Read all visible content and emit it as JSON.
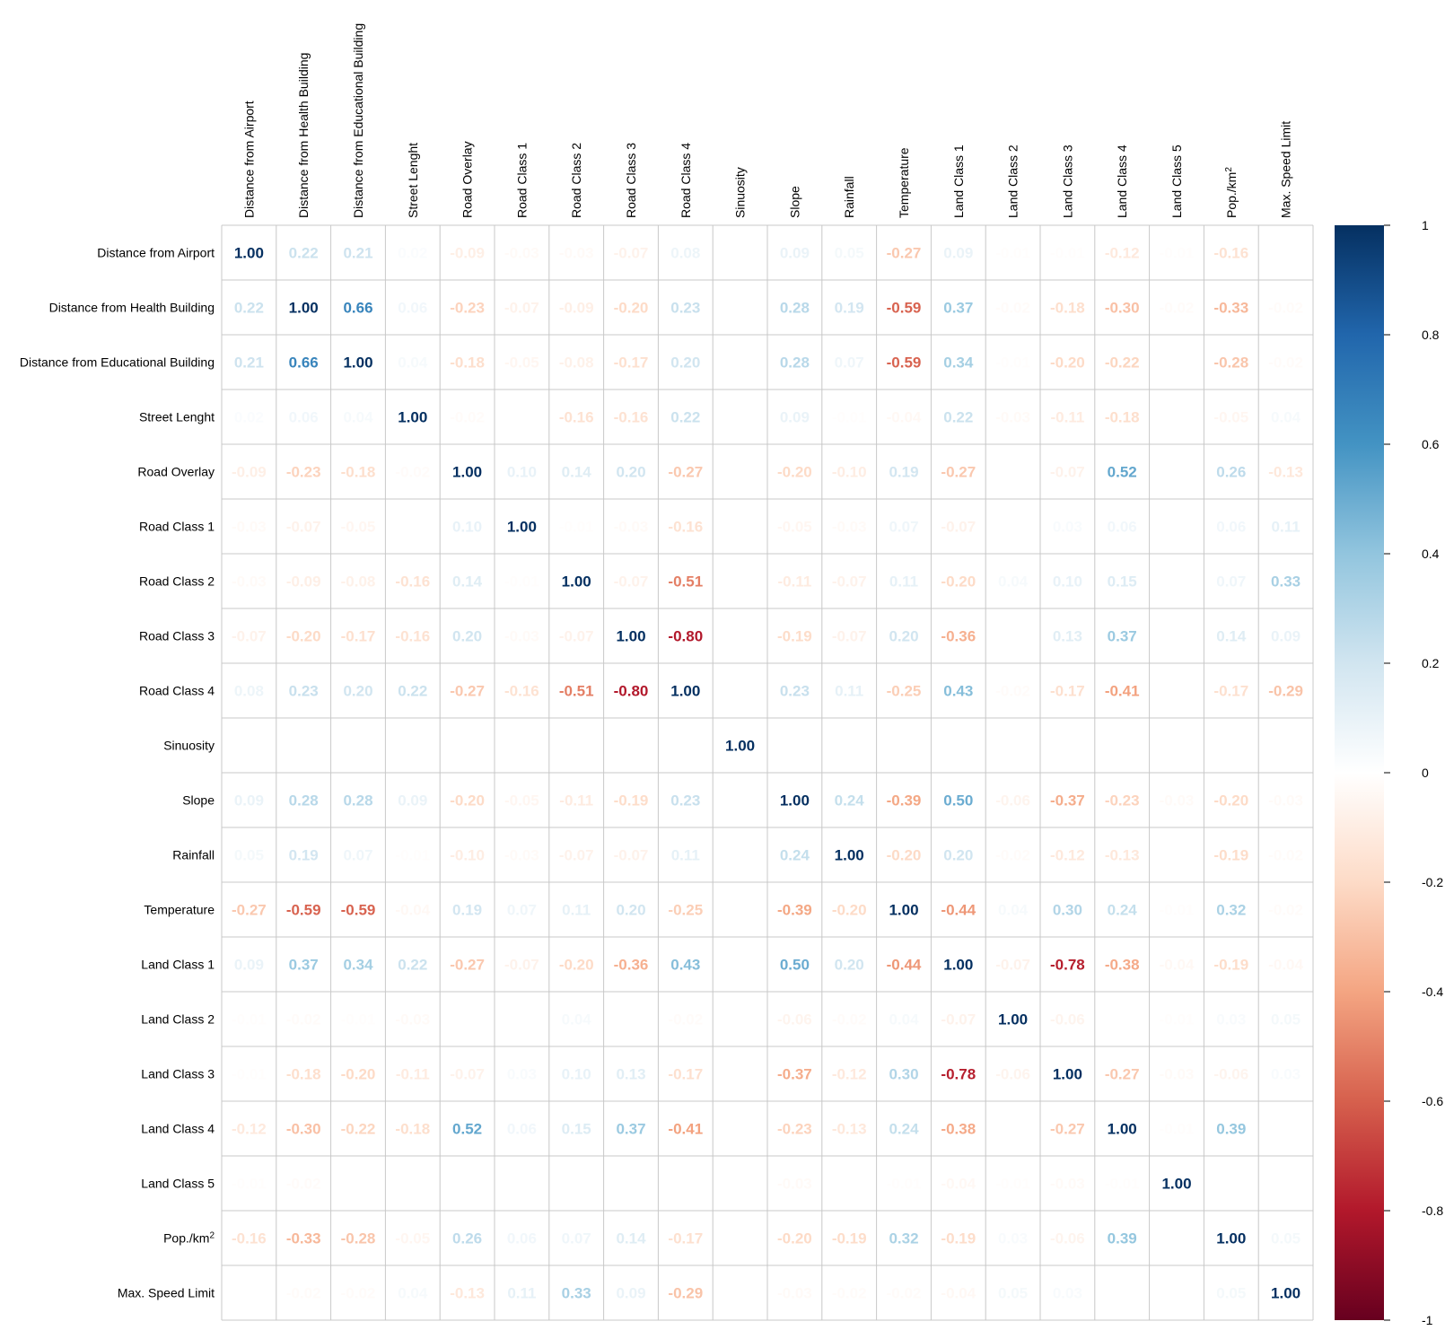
{
  "chart_data": {
    "type": "heatmap",
    "title": "",
    "variables": [
      "Distance from Airport",
      "Distance from Health Building",
      "Distance from Educational Building",
      "Street Lenght",
      "Road Overlay",
      "Road Class 1",
      "Road Class 2",
      "Road Class 3",
      "Road Class 4",
      "Sinuosity",
      "Slope",
      "Rainfall",
      "Temperature",
      "Land Class 1",
      "Land Class 2",
      "Land Class 3",
      "Land Class 4",
      "Land Class 5",
      "Pop./km2",
      "Max. Speed Limit"
    ],
    "matrix": [
      [
        1.0,
        0.22,
        0.21,
        0.02,
        -0.09,
        -0.03,
        -0.03,
        -0.07,
        0.08,
        0.0,
        0.09,
        0.05,
        -0.27,
        0.09,
        -0.01,
        -0.01,
        -0.12,
        -0.01,
        -0.16,
        0.0
      ],
      [
        0.22,
        1.0,
        0.66,
        0.06,
        -0.23,
        -0.07,
        -0.09,
        -0.2,
        0.23,
        0.0,
        0.28,
        0.19,
        -0.59,
        0.37,
        -0.02,
        -0.18,
        -0.3,
        -0.02,
        -0.33,
        -0.02
      ],
      [
        0.21,
        0.66,
        1.0,
        0.04,
        -0.18,
        -0.05,
        -0.08,
        -0.17,
        0.2,
        0.0,
        0.28,
        0.07,
        -0.59,
        0.34,
        -0.01,
        -0.2,
        -0.22,
        0.0,
        -0.28,
        -0.02
      ],
      [
        0.02,
        0.06,
        0.04,
        1.0,
        -0.02,
        0.0,
        -0.16,
        -0.16,
        0.22,
        0.0,
        0.09,
        -0.01,
        -0.04,
        0.22,
        -0.03,
        -0.11,
        -0.18,
        0.0,
        -0.05,
        0.04
      ],
      [
        -0.09,
        -0.23,
        -0.18,
        -0.02,
        1.0,
        0.1,
        0.14,
        0.2,
        -0.27,
        0.0,
        -0.2,
        -0.1,
        0.19,
        -0.27,
        0.0,
        -0.07,
        0.52,
        0.0,
        0.26,
        -0.13
      ],
      [
        -0.03,
        -0.07,
        -0.05,
        0.0,
        0.1,
        1.0,
        -0.01,
        -0.03,
        -0.16,
        0.0,
        -0.05,
        -0.03,
        0.07,
        -0.07,
        0.0,
        0.03,
        0.06,
        0.0,
        0.06,
        0.11
      ],
      [
        -0.03,
        -0.09,
        -0.08,
        -0.16,
        0.14,
        -0.01,
        1.0,
        -0.07,
        -0.51,
        0.0,
        -0.11,
        -0.07,
        0.11,
        -0.2,
        0.04,
        0.1,
        0.15,
        0.0,
        0.07,
        0.33
      ],
      [
        -0.07,
        -0.2,
        -0.17,
        -0.16,
        0.2,
        -0.03,
        -0.07,
        1.0,
        -0.8,
        0.0,
        -0.19,
        -0.07,
        0.2,
        -0.36,
        0.0,
        0.13,
        0.37,
        0.0,
        0.14,
        0.09
      ],
      [
        0.08,
        0.23,
        0.2,
        0.22,
        -0.27,
        -0.16,
        -0.51,
        -0.8,
        1.0,
        0.0,
        0.23,
        0.11,
        -0.25,
        0.43,
        -0.02,
        -0.17,
        -0.41,
        0.0,
        -0.17,
        -0.29
      ],
      [
        0.0,
        0.0,
        0.0,
        0.0,
        0.0,
        0.0,
        0.0,
        0.0,
        0.0,
        1.0,
        0.0,
        0.0,
        0.0,
        0.0,
        0.0,
        0.0,
        0.0,
        0.0,
        0.0,
        0.0
      ],
      [
        0.09,
        0.28,
        0.28,
        0.09,
        -0.2,
        -0.05,
        -0.11,
        -0.19,
        0.23,
        0.0,
        1.0,
        0.24,
        -0.39,
        0.5,
        -0.06,
        -0.37,
        -0.23,
        -0.03,
        -0.2,
        -0.03
      ],
      [
        0.05,
        0.19,
        0.07,
        -0.01,
        -0.1,
        -0.03,
        -0.07,
        -0.07,
        0.11,
        0.0,
        0.24,
        1.0,
        -0.2,
        0.2,
        -0.02,
        -0.12,
        -0.13,
        0.0,
        -0.19,
        -0.02
      ],
      [
        -0.27,
        -0.59,
        -0.59,
        -0.04,
        0.19,
        0.07,
        0.11,
        0.2,
        -0.25,
        0.0,
        -0.39,
        -0.2,
        1.0,
        -0.44,
        0.04,
        0.3,
        0.24,
        -0.01,
        0.32,
        -0.02
      ],
      [
        0.09,
        0.37,
        0.34,
        0.22,
        -0.27,
        -0.07,
        -0.2,
        -0.36,
        0.43,
        0.0,
        0.5,
        0.2,
        -0.44,
        1.0,
        -0.07,
        -0.78,
        -0.38,
        -0.04,
        -0.19,
        -0.04
      ],
      [
        -0.01,
        -0.02,
        -0.01,
        -0.03,
        0.0,
        0.0,
        0.04,
        0.0,
        -0.02,
        0.0,
        -0.06,
        -0.02,
        0.04,
        -0.07,
        1.0,
        -0.06,
        0.0,
        -0.01,
        0.03,
        0.05
      ],
      [
        -0.01,
        -0.18,
        -0.2,
        -0.11,
        -0.07,
        0.03,
        0.1,
        0.13,
        -0.17,
        0.0,
        -0.37,
        -0.12,
        0.3,
        -0.78,
        -0.06,
        1.0,
        -0.27,
        -0.03,
        -0.06,
        0.03
      ],
      [
        -0.12,
        -0.3,
        -0.22,
        -0.18,
        0.52,
        0.06,
        0.15,
        0.37,
        -0.41,
        0.0,
        -0.23,
        -0.13,
        0.24,
        -0.38,
        0.0,
        -0.27,
        1.0,
        -0.01,
        0.39,
        0.0
      ],
      [
        -0.01,
        -0.02,
        0.0,
        0.0,
        0.0,
        0.0,
        0.0,
        0.0,
        0.0,
        0.0,
        -0.03,
        0.0,
        -0.01,
        -0.04,
        -0.01,
        -0.03,
        -0.01,
        1.0,
        0.0,
        0.0
      ],
      [
        -0.16,
        -0.33,
        -0.28,
        -0.05,
        0.26,
        0.06,
        0.07,
        0.14,
        -0.17,
        0.0,
        -0.2,
        -0.19,
        0.32,
        -0.19,
        0.03,
        -0.06,
        0.39,
        0.0,
        1.0,
        0.05
      ],
      [
        0.0,
        -0.02,
        -0.02,
        0.04,
        -0.13,
        0.11,
        0.33,
        0.09,
        -0.29,
        0.0,
        -0.03,
        -0.02,
        -0.02,
        -0.04,
        0.05,
        0.03,
        0.0,
        0.0,
        0.05,
        1.0
      ]
    ],
    "blank_cells": [
      [
        0,
        9
      ],
      [
        0,
        19
      ],
      [
        1,
        9
      ],
      [
        2,
        9
      ],
      [
        3,
        5
      ],
      [
        3,
        9
      ],
      [
        3,
        17
      ],
      [
        4,
        9
      ],
      [
        4,
        14
      ],
      [
        4,
        17
      ],
      [
        5,
        3
      ],
      [
        5,
        9
      ],
      [
        5,
        14
      ],
      [
        5,
        17
      ],
      [
        6,
        9
      ],
      [
        6,
        17
      ],
      [
        7,
        9
      ],
      [
        7,
        14
      ],
      [
        7,
        17
      ],
      [
        8,
        9
      ],
      [
        8,
        17
      ],
      [
        9,
        0
      ],
      [
        9,
        1
      ],
      [
        9,
        2
      ],
      [
        9,
        3
      ],
      [
        9,
        4
      ],
      [
        9,
        5
      ],
      [
        9,
        6
      ],
      [
        9,
        7
      ],
      [
        9,
        8
      ],
      [
        9,
        10
      ],
      [
        9,
        11
      ],
      [
        9,
        12
      ],
      [
        9,
        13
      ],
      [
        9,
        14
      ],
      [
        9,
        15
      ],
      [
        9,
        16
      ],
      [
        9,
        17
      ],
      [
        9,
        18
      ],
      [
        9,
        19
      ],
      [
        10,
        9
      ],
      [
        11,
        9
      ],
      [
        12,
        9
      ],
      [
        13,
        9
      ],
      [
        14,
        4
      ],
      [
        14,
        5
      ],
      [
        14,
        7
      ],
      [
        14,
        9
      ],
      [
        14,
        16
      ],
      [
        15,
        9
      ],
      [
        16,
        9
      ],
      [
        16,
        14
      ],
      [
        16,
        19
      ],
      [
        17,
        2
      ],
      [
        17,
        3
      ],
      [
        17,
        4
      ],
      [
        17,
        5
      ],
      [
        17,
        6
      ],
      [
        17,
        7
      ],
      [
        17,
        8
      ],
      [
        17,
        9
      ],
      [
        17,
        11
      ],
      [
        17,
        18
      ],
      [
        17,
        19
      ],
      [
        18,
        9
      ],
      [
        18,
        17
      ],
      [
        19,
        0
      ],
      [
        19,
        9
      ],
      [
        19,
        16
      ],
      [
        19,
        17
      ]
    ],
    "color_scale": {
      "min": -1,
      "max": 1,
      "ticks": [
        "1",
        "0.8",
        "0.6",
        "0.4",
        "0.2",
        "0",
        "-0.2",
        "-0.4",
        "-0.6",
        "-0.8",
        "-1"
      ],
      "stops": [
        "#67001F",
        "#B2182B",
        "#D6604D",
        "#F4A582",
        "#FDDBC7",
        "#FFFFFF",
        "#D1E5F0",
        "#92C5DE",
        "#4393C3",
        "#2166AC",
        "#053061"
      ]
    },
    "grid": true,
    "legend": "right"
  }
}
